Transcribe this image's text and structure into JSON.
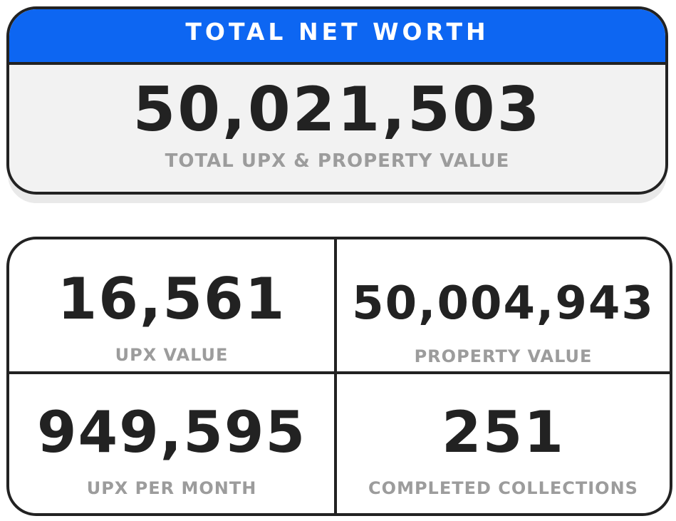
{
  "net_worth": {
    "header": "TOTAL NET WORTH",
    "value": "50,021,503",
    "subtitle": "TOTAL UPX & PROPERTY VALUE"
  },
  "stats": {
    "upx": {
      "value": "16,561",
      "label": "UPX VALUE"
    },
    "property": {
      "value": "50,004,943",
      "label": "PROPERTY VALUE"
    },
    "per_month": {
      "value": "949,595",
      "label": "UPX PER MONTH"
    },
    "collections": {
      "value": "251",
      "label": "COMPLETED COLLECTIONS"
    }
  },
  "colors": {
    "header_blue": "#0d66f2",
    "value_text": "#222222",
    "label_gray": "#9c9c9c",
    "card_fill": "#f2f2f2"
  }
}
